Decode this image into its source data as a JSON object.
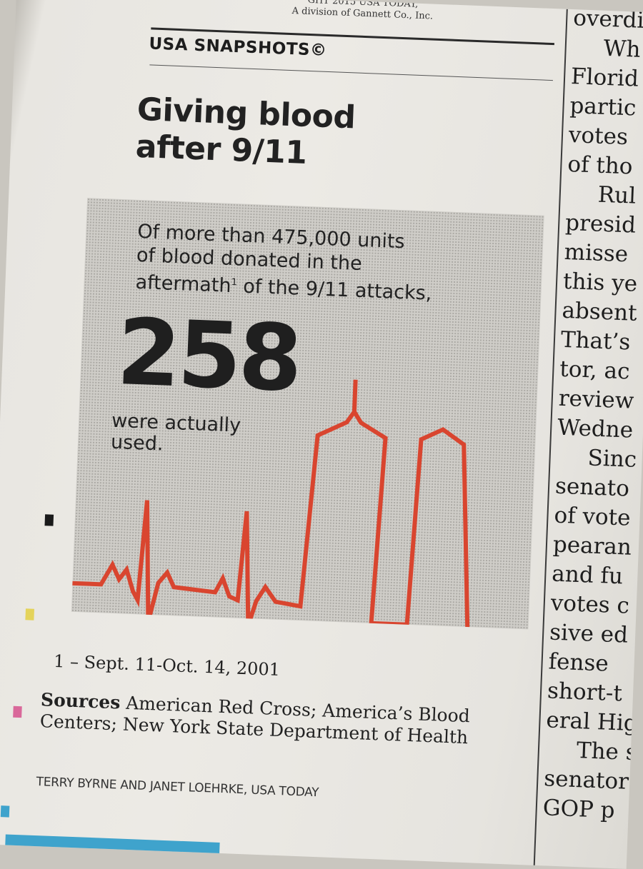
{
  "masthead": {
    "copyright_line": "GHT 2015 USA TODAY,",
    "division_line": "A division of Gannett Co., Inc."
  },
  "section_label": "USA SNAPSHOTS©",
  "headline": {
    "line1": "Giving blood",
    "line2": "after 9/11"
  },
  "snapshot": {
    "intro_line1": "Of more than 475,000 units",
    "intro_line2": "of blood donated in the",
    "intro_line3a": "aftermath",
    "footnote_marker": "1",
    "intro_line3b": " of the 9/11 attacks,",
    "big_number": "258",
    "outro_line1": "were actually",
    "outro_line2": "used.",
    "graphic_icon": "heartbeat-twin-towers-icon",
    "accent_color": "#d9452f"
  },
  "footnote": "1 – Sept. 11-Oct. 14, 2001",
  "sources": {
    "label": "Sources",
    "text": " American Red Cross; America’s Blood Centers; New York State Department of Health"
  },
  "credit": "TERRY BYRNE AND JANET LOEHRKE, USA TODAY",
  "adjacent_column": [
    "overdi",
    "Wh",
    "Florid",
    "partic",
    "votes",
    "of tho",
    "Rul",
    "presid",
    "misse",
    "this ye",
    "absent",
    "That’s",
    "tor, ac",
    "review",
    "Wedne",
    "Sinc",
    "senato",
    "of vote",
    "pearan",
    "and fu",
    "votes c",
    "sive ed",
    "fense",
    "short-t",
    "eral Hig",
    "The s",
    "senator",
    "GOP p"
  ]
}
